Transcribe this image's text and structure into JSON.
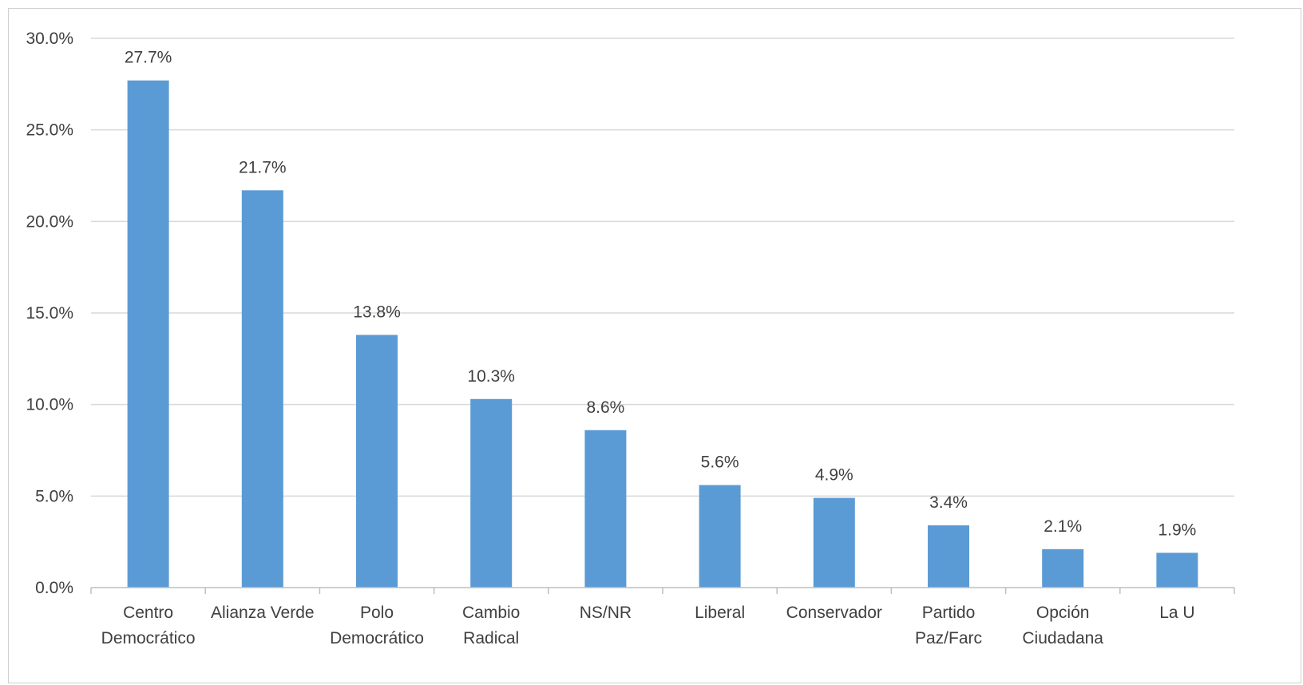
{
  "chart_data": {
    "type": "bar",
    "title": "",
    "xlabel": "",
    "ylabel": "",
    "categories": [
      [
        "Centro",
        "Democrático"
      ],
      [
        "Alianza Verde"
      ],
      [
        "Polo",
        "Democrático"
      ],
      [
        "Cambio",
        "Radical"
      ],
      [
        "NS/NR"
      ],
      [
        "Liberal"
      ],
      [
        "Conservador"
      ],
      [
        "Partido",
        "Paz/Farc"
      ],
      [
        "Opción",
        "Ciudadana"
      ],
      [
        "La U"
      ]
    ],
    "values": [
      27.7,
      21.7,
      13.8,
      10.3,
      8.6,
      5.6,
      4.9,
      3.4,
      2.1,
      1.9
    ],
    "data_labels": [
      "27.7%",
      "21.7%",
      "13.8%",
      "10.3%",
      "8.6%",
      "5.6%",
      "4.9%",
      "3.4%",
      "2.1%",
      "1.9%"
    ],
    "y_ticks": [
      0,
      5,
      10,
      15,
      20,
      25,
      30
    ],
    "y_tick_labels": [
      "0.0%",
      "5.0%",
      "10.0%",
      "15.0%",
      "20.0%",
      "25.0%",
      "30.0%"
    ],
    "ylim": [
      0,
      30
    ],
    "grid": true,
    "legend": "none",
    "colors": {
      "bar": "#5b9bd5",
      "grid": "#d9d9d9",
      "axis": "#bfbfbf",
      "text": "#404040"
    }
  }
}
